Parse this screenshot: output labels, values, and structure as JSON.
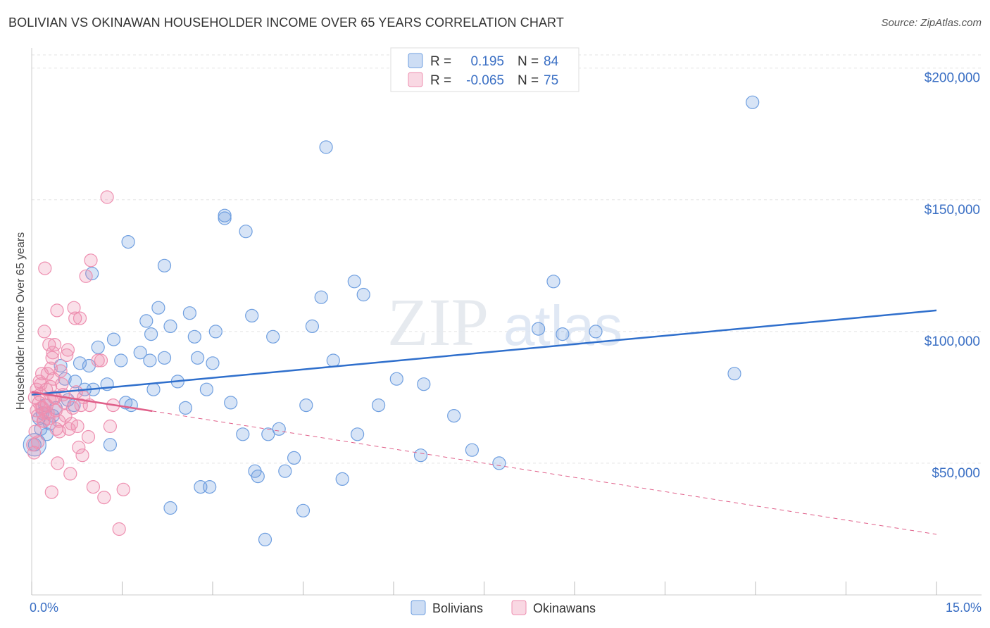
{
  "title": "BOLIVIAN VS OKINAWAN HOUSEHOLDER INCOME OVER 65 YEARS CORRELATION CHART",
  "source": "Source: ZipAtlas.com",
  "watermark": {
    "part1": "ZIP",
    "part2": "atlas"
  },
  "colors": {
    "blue": "#6f9fe0",
    "blue_fill": "rgba(111,159,224,0.28)",
    "blue_line": "#2f6fcc",
    "pink": "#ee8fb0",
    "pink_fill": "rgba(238,143,176,0.28)",
    "pink_line": "#e0608a",
    "tick_text": "#3a6fc4"
  },
  "legend": {
    "rows": [
      {
        "r_label": "R =",
        "r_value": "0.195",
        "n_label": "N =",
        "n_value": "84"
      },
      {
        "r_label": "R =",
        "r_value": "-0.065",
        "n_label": "N =",
        "n_value": "75"
      }
    ]
  },
  "chart_data": {
    "type": "scatter",
    "title": "BOLIVIAN VS OKINAWAN HOUSEHOLDER INCOME OVER 65 YEARS CORRELATION CHART",
    "xlabel": "",
    "ylabel": "Householder Income Over 65 years",
    "xlim": [
      0,
      15
    ],
    "ylim": [
      0,
      205000
    ],
    "x_tick_labels": [
      "0.0%",
      "15.0%"
    ],
    "y_ticks": [
      50000,
      100000,
      150000,
      200000
    ],
    "y_tick_labels": [
      "$50,000",
      "$100,000",
      "$150,000",
      "$200,000"
    ],
    "grid": true,
    "series": [
      {
        "name": "Bolivians",
        "r": 0.195,
        "n": 84,
        "trend": {
          "x": [
            0,
            15
          ],
          "y": [
            76000,
            108000
          ],
          "dashed_from": null
        },
        "points": [
          [
            0.05,
            57000
          ],
          [
            0.12,
            67000
          ],
          [
            0.15,
            63000
          ],
          [
            0.18,
            69000
          ],
          [
            0.22,
            72000
          ],
          [
            0.25,
            61000
          ],
          [
            0.3,
            65000
          ],
          [
            0.35,
            68000
          ],
          [
            0.4,
            71000
          ],
          [
            0.48,
            87000
          ],
          [
            0.55,
            82000
          ],
          [
            0.6,
            74000
          ],
          [
            0.7,
            72000
          ],
          [
            0.72,
            81000
          ],
          [
            0.8,
            88000
          ],
          [
            0.88,
            78000
          ],
          [
            0.95,
            87000
          ],
          [
            1.02,
            78000
          ],
          [
            1.1,
            94000
          ],
          [
            1.25,
            80000
          ],
          [
            1.3,
            57000
          ],
          [
            1.36,
            97000
          ],
          [
            1.48,
            89000
          ],
          [
            1.56,
            73000
          ],
          [
            1.65,
            72000
          ],
          [
            1.8,
            92000
          ],
          [
            1.9,
            104000
          ],
          [
            1.98,
            99000
          ],
          [
            2.02,
            78000
          ],
          [
            2.1,
            109000
          ],
          [
            2.2,
            90000
          ],
          [
            2.3,
            102000
          ],
          [
            2.42,
            81000
          ],
          [
            2.55,
            71000
          ],
          [
            2.62,
            107000
          ],
          [
            2.7,
            98000
          ],
          [
            2.75,
            90000
          ],
          [
            2.8,
            41000
          ],
          [
            2.9,
            78000
          ],
          [
            2.95,
            41000
          ],
          [
            3.0,
            88000
          ],
          [
            3.05,
            100000
          ],
          [
            3.2,
            143000
          ],
          [
            3.3,
            73000
          ],
          [
            3.5,
            61000
          ],
          [
            3.55,
            138000
          ],
          [
            3.65,
            106000
          ],
          [
            3.7,
            47000
          ],
          [
            3.75,
            45000
          ],
          [
            3.92,
            61000
          ],
          [
            4.0,
            98000
          ],
          [
            4.1,
            63000
          ],
          [
            4.2,
            47000
          ],
          [
            4.35,
            52000
          ],
          [
            4.5,
            32000
          ],
          [
            4.55,
            72000
          ],
          [
            4.65,
            102000
          ],
          [
            4.8,
            113000
          ],
          [
            4.88,
            170000
          ],
          [
            5.0,
            89000
          ],
          [
            5.15,
            44000
          ],
          [
            5.35,
            119000
          ],
          [
            5.4,
            61000
          ],
          [
            5.5,
            114000
          ],
          [
            5.75,
            72000
          ],
          [
            6.05,
            82000
          ],
          [
            6.45,
            53000
          ],
          [
            6.5,
            80000
          ],
          [
            7.0,
            68000
          ],
          [
            7.3,
            55000
          ],
          [
            7.75,
            50000
          ],
          [
            8.4,
            101000
          ],
          [
            8.65,
            119000
          ],
          [
            8.8,
            99000
          ],
          [
            9.35,
            100000
          ],
          [
            11.65,
            84000
          ],
          [
            11.95,
            187000
          ],
          [
            1.0,
            122000
          ],
          [
            1.6,
            134000
          ],
          [
            2.2,
            125000
          ],
          [
            1.96,
            89000
          ],
          [
            3.2,
            144000
          ],
          [
            3.87,
            21000
          ],
          [
            2.3,
            33000
          ]
        ]
      },
      {
        "name": "Okinawans",
        "r": -0.065,
        "n": 75,
        "trend": {
          "x": [
            0,
            15
          ],
          "y": [
            77000,
            23000
          ],
          "solid_until_x": 2.0
        },
        "points": [
          [
            0.02,
            57000
          ],
          [
            0.04,
            54000
          ],
          [
            0.06,
            62000
          ],
          [
            0.08,
            70000
          ],
          [
            0.1,
            68000
          ],
          [
            0.12,
            73000
          ],
          [
            0.14,
            76000
          ],
          [
            0.15,
            80000
          ],
          [
            0.17,
            84000
          ],
          [
            0.18,
            71000
          ],
          [
            0.2,
            66000
          ],
          [
            0.22,
            124000
          ],
          [
            0.24,
            78000
          ],
          [
            0.25,
            72000
          ],
          [
            0.27,
            69000
          ],
          [
            0.28,
            67000
          ],
          [
            0.3,
            74000
          ],
          [
            0.32,
            86000
          ],
          [
            0.34,
            90000
          ],
          [
            0.35,
            92000
          ],
          [
            0.36,
            82000
          ],
          [
            0.38,
            95000
          ],
          [
            0.39,
            75000
          ],
          [
            0.4,
            70000
          ],
          [
            0.42,
            108000
          ],
          [
            0.43,
            50000
          ],
          [
            0.45,
            66000
          ],
          [
            0.46,
            62000
          ],
          [
            0.48,
            85000
          ],
          [
            0.5,
            80000
          ],
          [
            0.52,
            76000
          ],
          [
            0.54,
            73000
          ],
          [
            0.56,
            68000
          ],
          [
            0.58,
            91000
          ],
          [
            0.6,
            93000
          ],
          [
            0.62,
            63000
          ],
          [
            0.64,
            46000
          ],
          [
            0.66,
            65000
          ],
          [
            0.68,
            71000
          ],
          [
            0.7,
            109000
          ],
          [
            0.72,
            105000
          ],
          [
            0.74,
            77000
          ],
          [
            0.76,
            64000
          ],
          [
            0.78,
            56000
          ],
          [
            0.8,
            105000
          ],
          [
            0.82,
            72000
          ],
          [
            0.84,
            53000
          ],
          [
            0.86,
            75000
          ],
          [
            0.9,
            121000
          ],
          [
            0.94,
            60000
          ],
          [
            0.96,
            72000
          ],
          [
            0.98,
            127000
          ],
          [
            1.02,
            41000
          ],
          [
            1.1,
            89000
          ],
          [
            1.15,
            89000
          ],
          [
            1.2,
            37000
          ],
          [
            1.25,
            151000
          ],
          [
            1.3,
            64000
          ],
          [
            1.35,
            72000
          ],
          [
            1.45,
            25000
          ],
          [
            1.52,
            40000
          ],
          [
            0.33,
            39000
          ],
          [
            0.05,
            75000
          ],
          [
            0.08,
            78000
          ],
          [
            0.1,
            58000
          ],
          [
            0.13,
            81000
          ],
          [
            0.16,
            71000
          ],
          [
            0.19,
            66000
          ],
          [
            0.21,
            100000
          ],
          [
            0.23,
            69000
          ],
          [
            0.26,
            84000
          ],
          [
            0.29,
            95000
          ],
          [
            0.31,
            79000
          ],
          [
            0.37,
            75000
          ],
          [
            0.41,
            63000
          ]
        ]
      }
    ]
  },
  "bottom_legend": [
    {
      "label": "Bolivians"
    },
    {
      "label": "Okinawans"
    }
  ]
}
